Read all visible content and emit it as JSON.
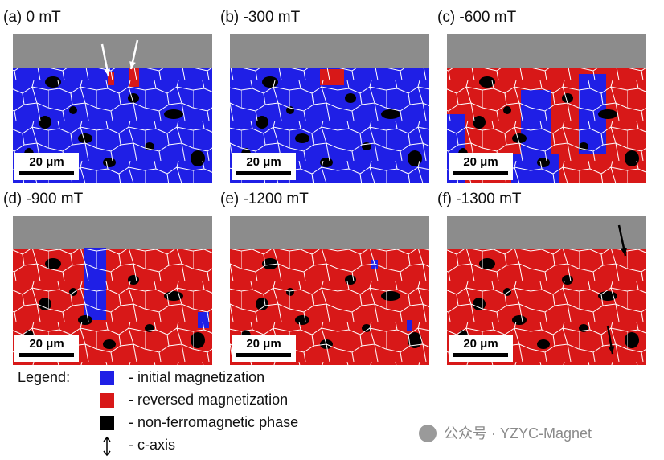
{
  "panels": [
    {
      "label": "(a) 0 mT",
      "scale_bar": "20 μm"
    },
    {
      "label": "(b) -300 mT",
      "scale_bar": "20 μm"
    },
    {
      "label": "(c) -600 mT",
      "scale_bar": "20 μm"
    },
    {
      "label": "(d) -900 mT",
      "scale_bar": "20 μm"
    },
    {
      "label": "(e) -1200 mT",
      "scale_bar": "20 μm"
    },
    {
      "label": "(f) -1300 mT",
      "scale_bar": "20 μm"
    }
  ],
  "legend": {
    "title": "Legend:",
    "items": [
      {
        "text": "- initial magnetization"
      },
      {
        "text": "- reversed magnetization"
      },
      {
        "text": "- non-ferromagnetic phase"
      },
      {
        "text": "- c-axis"
      }
    ]
  },
  "watermark": "公众号 · YZYC-Magnet"
}
